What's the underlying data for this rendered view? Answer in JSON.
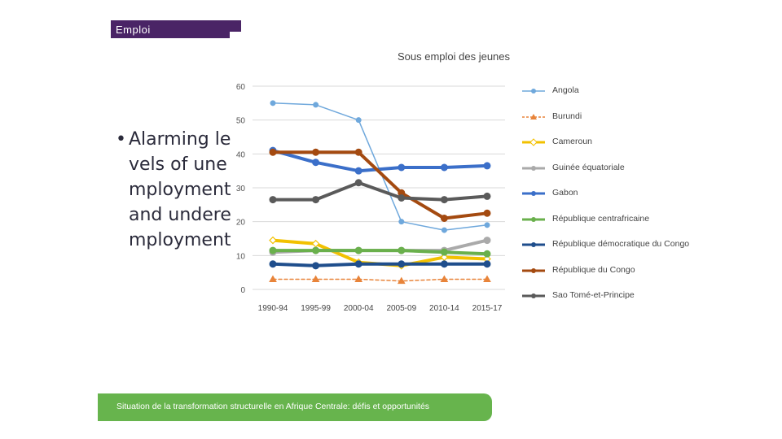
{
  "header": {
    "tag": "Emploi"
  },
  "bullet": {
    "symbol": "•",
    "text": "Alarming levels of unemployment and underemployment"
  },
  "footer": {
    "text": "Situation de la transformation structurelle en Afrique Centrale:  défis et opportunités"
  },
  "chart_data": {
    "type": "line",
    "title": "Sous emploi des jeunes",
    "xlabel": "",
    "ylabel": "",
    "categories": [
      "1990-94",
      "1995-99",
      "2000-04",
      "2005-09",
      "2010-14",
      "2015-17"
    ],
    "ylim": [
      0,
      60
    ],
    "yticks": [
      0,
      10,
      20,
      30,
      40,
      50,
      60
    ],
    "grid": true,
    "legend_position": "right",
    "series": [
      {
        "name": "Angola",
        "color": "#6fa8dc",
        "dash": false,
        "marker": "circle",
        "width": 1.5,
        "values": [
          55,
          54.5,
          50,
          20,
          17.5,
          19
        ]
      },
      {
        "name": "Burundi",
        "color": "#e8843a",
        "dash": true,
        "marker": "triangle",
        "width": 1.5,
        "values": [
          3,
          3,
          3,
          2.5,
          3,
          3
        ]
      },
      {
        "name": "Cameroun",
        "color": "#f2c100",
        "dash": false,
        "marker": "diamond",
        "width": 4,
        "values": [
          14.5,
          13.5,
          8,
          7,
          9.5,
          9
        ]
      },
      {
        "name": "Guinée équatoriale",
        "color": "#aaaaaa",
        "dash": false,
        "marker": "circle",
        "width": 4,
        "values": [
          11,
          11.5,
          11.5,
          11.5,
          11.5,
          14.5
        ]
      },
      {
        "name": "Gabon",
        "color": "#3b6fc9",
        "dash": false,
        "marker": "circle",
        "width": 4,
        "values": [
          41,
          37.5,
          35,
          36,
          36,
          36.5
        ]
      },
      {
        "name": "République centrafricaine",
        "color": "#6ab04c",
        "dash": false,
        "marker": "circle",
        "width": 4,
        "values": [
          11.5,
          11.5,
          11.5,
          11.5,
          11,
          10.5
        ]
      },
      {
        "name": "République démocratique du Congo",
        "color": "#1f4e8c",
        "dash": false,
        "marker": "circle",
        "width": 4,
        "values": [
          7.5,
          7,
          7.5,
          7.5,
          7.5,
          7.5
        ]
      },
      {
        "name": "République du Congo",
        "color": "#a44a10",
        "dash": false,
        "marker": "circle",
        "width": 4,
        "values": [
          40.5,
          40.5,
          40.5,
          28.5,
          21,
          22.5
        ]
      },
      {
        "name": "Sao Tomé-et-Principe",
        "color": "#5a5a5a",
        "dash": false,
        "marker": "circle",
        "width": 4,
        "values": [
          26.5,
          26.5,
          31.5,
          27,
          26.5,
          27.5
        ]
      }
    ]
  }
}
